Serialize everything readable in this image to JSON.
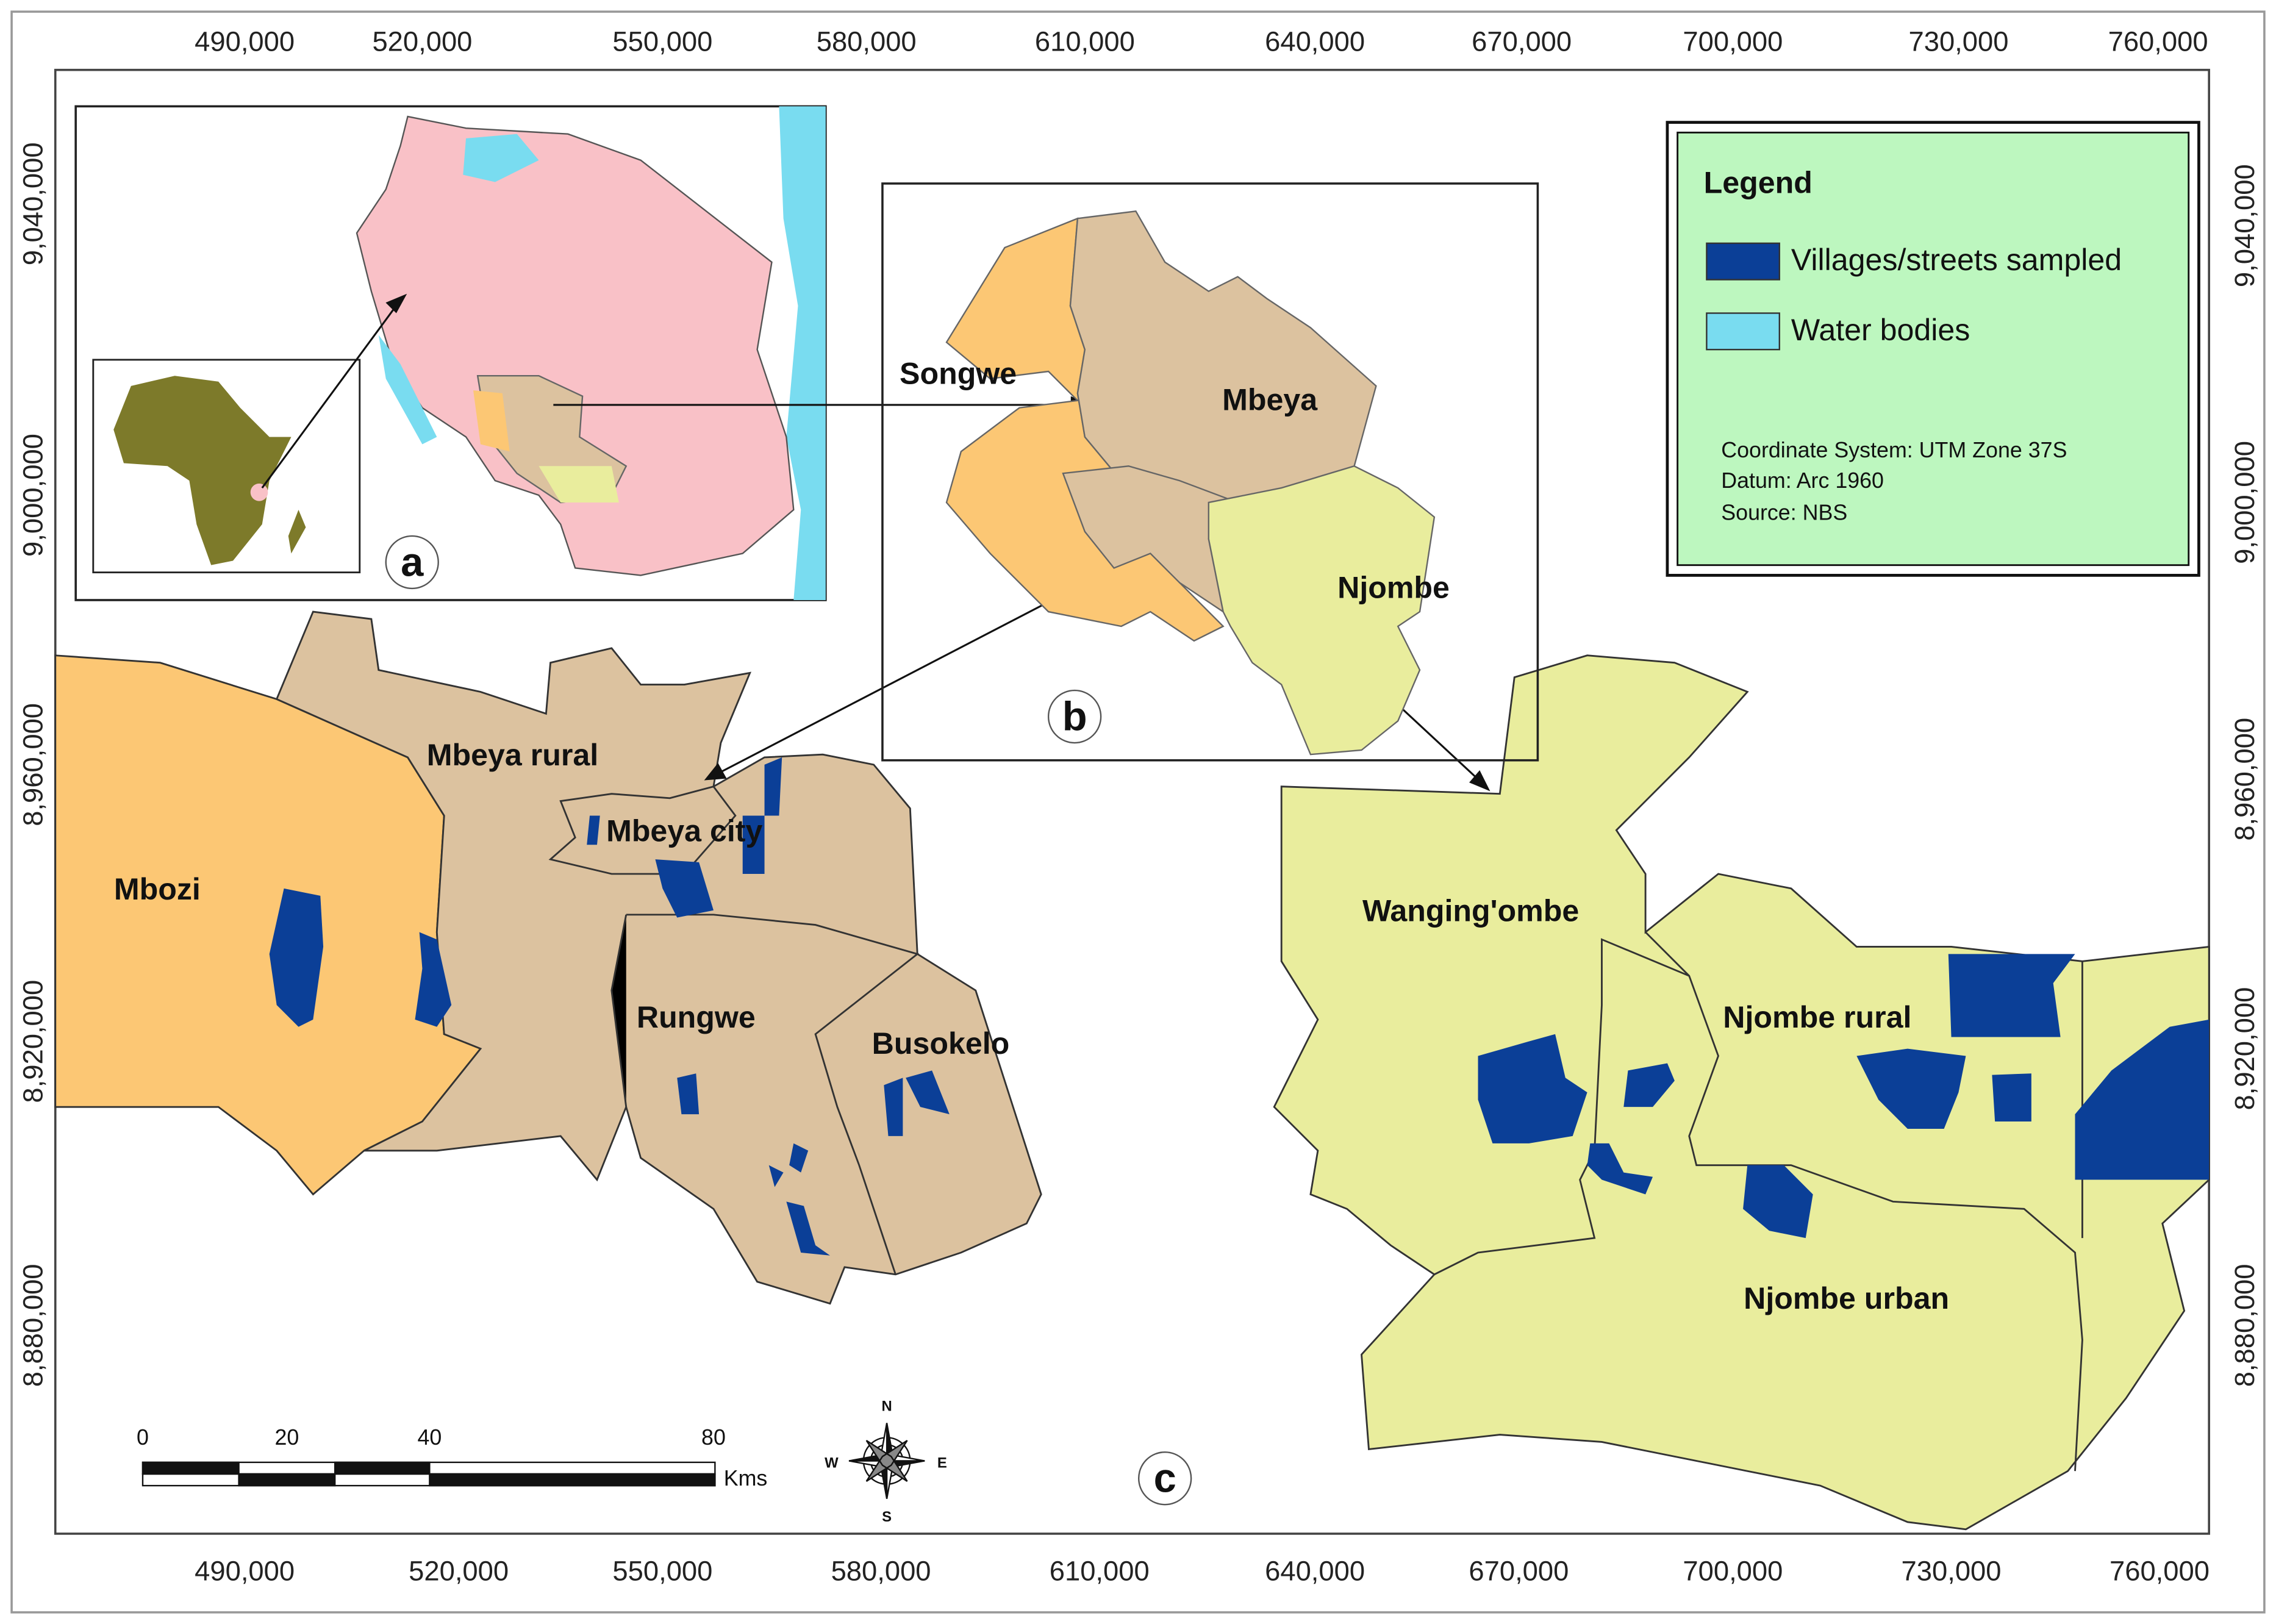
{
  "axes": {
    "x_top": [
      "490,000",
      "520,000",
      "550,000",
      "580,000",
      "610,000",
      "640,000",
      "670,000",
      "700,000",
      "730,000",
      "760,000"
    ],
    "x_bottom": [
      "490,000",
      "520,000",
      "550,000",
      "580,000",
      "610,000",
      "640,000",
      "670,000",
      "700,000",
      "730,000",
      "760,000"
    ],
    "y_left": [
      "9,040,000",
      "9,000,000",
      "8,960,000",
      "8,920,000",
      "8,880,000"
    ],
    "y_right": [
      "9,040,000",
      "9,000,000",
      "8,960,000",
      "8,920,000",
      "8,880,000"
    ]
  },
  "legend": {
    "title": "Legend",
    "items": [
      "Villages/streets sampled",
      "Water bodies"
    ],
    "notes": [
      "Coordinate System: UTM Zone 37S",
      "Datum: Arc 1960",
      "Source: NBS"
    ]
  },
  "panels": [
    "a",
    "b",
    "c"
  ],
  "inset_b_labels": [
    "Songwe",
    "Mbeya",
    "Njombe"
  ],
  "districts": [
    "Mbozi",
    "Mbeya rural",
    "Mbeya city",
    "Rungwe",
    "Busokelo",
    "Wanging'ombe",
    "Njombe rural",
    "Njombe urban"
  ],
  "scale_bar": {
    "labels": [
      "0",
      "20",
      "40",
      "80"
    ],
    "unit": "Kms"
  },
  "compass": [
    "N",
    "S",
    "E",
    "W"
  ]
}
